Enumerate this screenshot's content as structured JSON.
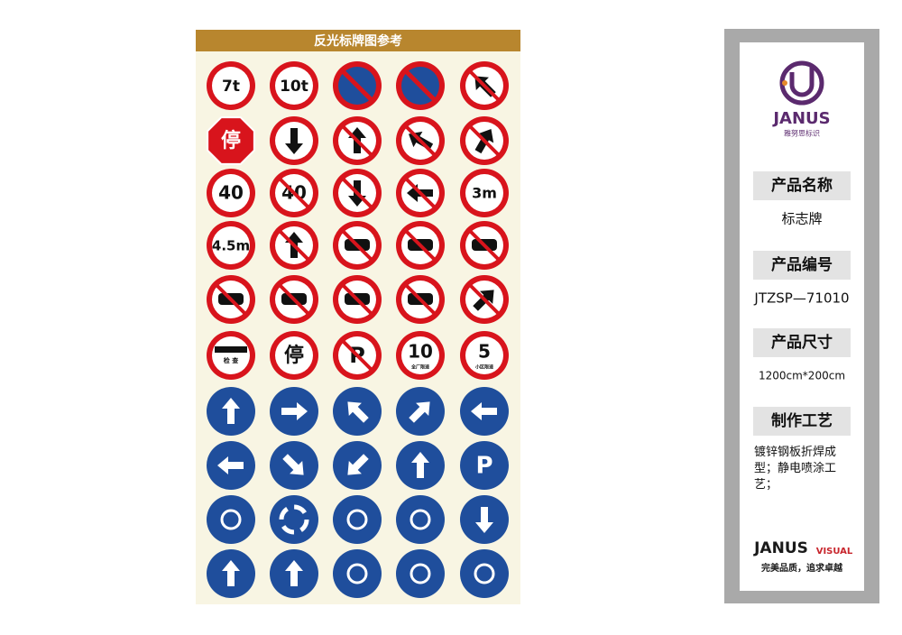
{
  "board": {
    "title": "反光标牌图参考",
    "sign_texts": [
      "7t",
      "10t",
      "停",
      "40",
      "40",
      "3m",
      "4.5m",
      "检 查",
      "停",
      "P",
      "10",
      "全厂限速",
      "5",
      "小区限速",
      "P"
    ]
  },
  "panel": {
    "brand": "JANUS",
    "brand_sub": "雅努思标识",
    "fields": [
      {
        "label": "产品名称",
        "value": "标志牌"
      },
      {
        "label": "产品编号",
        "value": "JTZSP—71010"
      },
      {
        "label": "产品尺寸",
        "value": "1200cm*200cm"
      },
      {
        "label": "制作工艺",
        "value": "镀锌钢板折焊成型；静电喷涂工艺；"
      }
    ],
    "footer_brand": "JANUS",
    "footer_visual": "VISUAL",
    "slogan": "完美品质，追求卓越"
  }
}
